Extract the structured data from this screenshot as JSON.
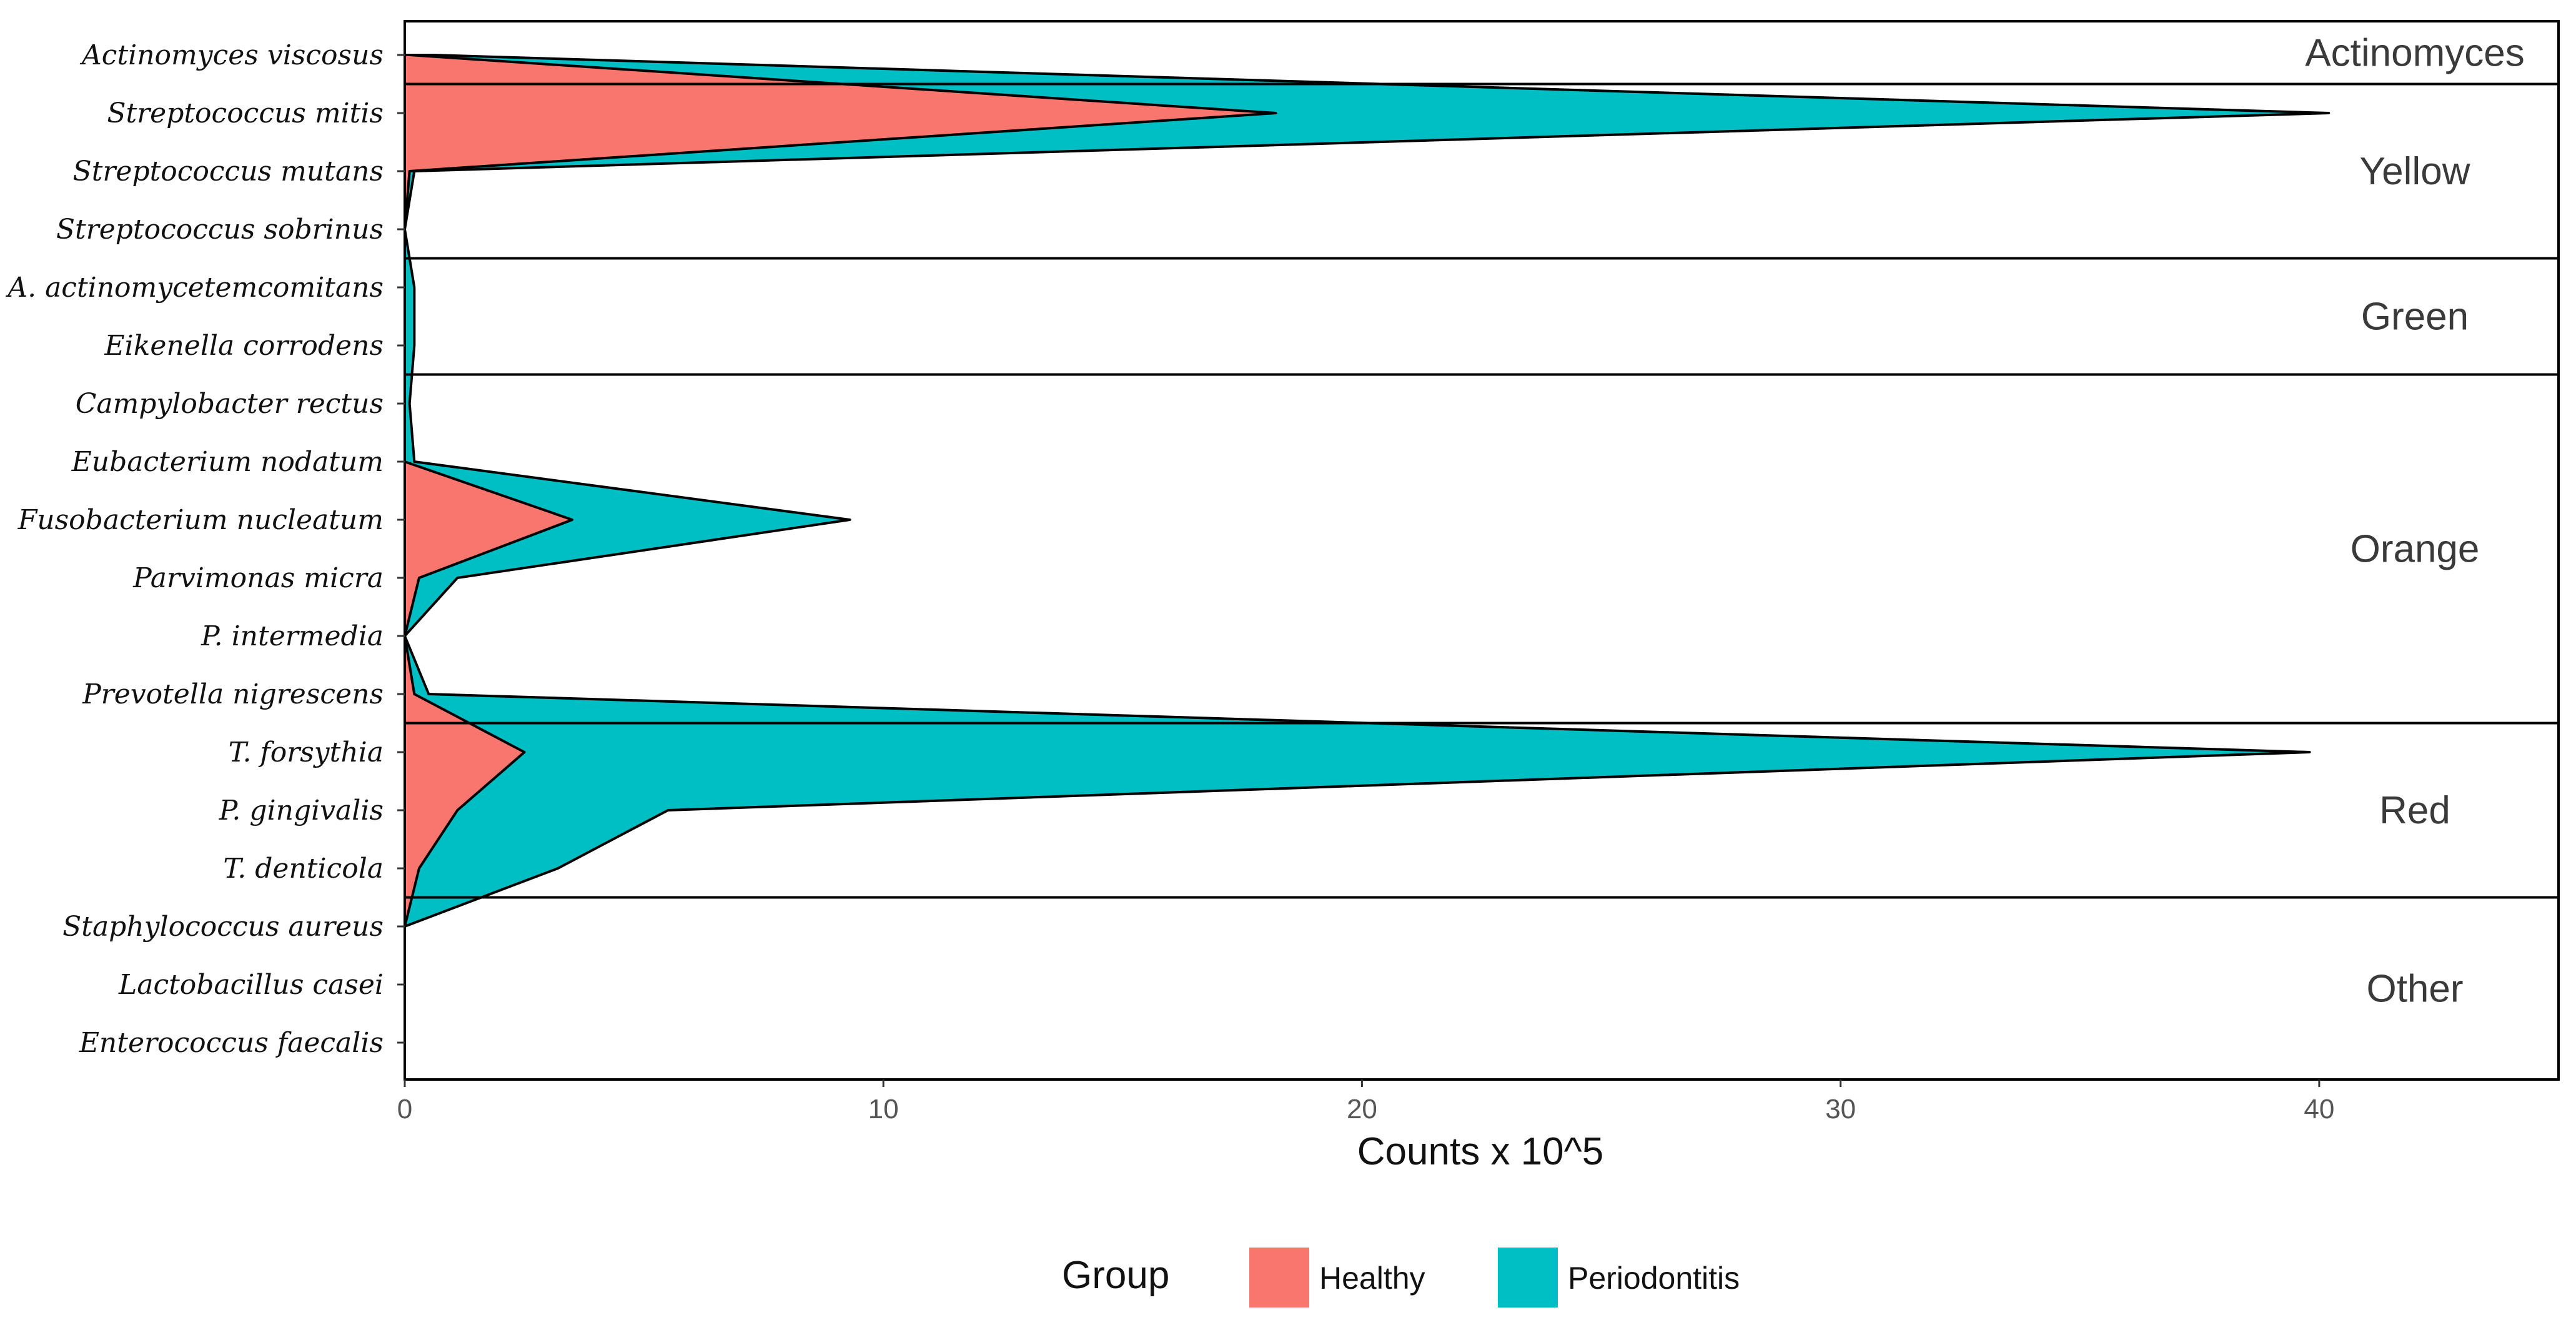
{
  "chart_data": {
    "type": "area",
    "orientation": "horizontal",
    "xlabel": "Counts x 10^5",
    "xlim": [
      0,
      45
    ],
    "x_ticks": [
      0,
      10,
      20,
      30,
      40
    ],
    "x_tick_labels": [
      "0",
      "10",
      "20",
      "30",
      "40"
    ],
    "categories": [
      "Actinomyces viscosus",
      "Streptococcus mitis",
      "Streptococcus mutans",
      "Streptococcus sobrinus",
      "A. actinomycetemcomitans",
      "Eikenella corrodens",
      "Campylobacter rectus",
      "Eubacterium nodatum",
      "Fusobacterium nucleatum",
      "Parvimonas micra",
      "P. intermedia",
      "Prevotella nigrescens",
      "T. forsythia",
      "P. gingivalis",
      "T. denticola",
      "Staphylococcus aureus",
      "Lactobacillus casei",
      "Enterococcus faecalis"
    ],
    "complexes": [
      {
        "name": "Actinomyces",
        "from": 0,
        "to": 0
      },
      {
        "name": "Yellow",
        "from": 1,
        "to": 3
      },
      {
        "name": "Green",
        "from": 4,
        "to": 5
      },
      {
        "name": "Orange",
        "from": 6,
        "to": 11
      },
      {
        "name": "Red",
        "from": 12,
        "to": 14
      },
      {
        "name": "Other",
        "from": 15,
        "to": 17
      }
    ],
    "series": [
      {
        "name": "Healthy",
        "color": "#F8766D",
        "values": [
          0.1,
          18.2,
          0.1,
          0.0,
          0.0,
          0.0,
          0.0,
          0.0,
          3.5,
          0.3,
          0.0,
          0.2,
          2.5,
          1.1,
          0.3,
          0.0,
          0.0,
          0.0
        ]
      },
      {
        "name": "Periodontitis",
        "color": "#00BFC4",
        "values": [
          0.5,
          22.0,
          0.1,
          0.0,
          0.2,
          0.2,
          0.1,
          0.2,
          5.8,
          0.8,
          0.0,
          0.3,
          37.3,
          4.4,
          2.9,
          0.0,
          0.0,
          0.0
        ]
      }
    ],
    "legend": {
      "title": "Group",
      "position": "bottom",
      "entries": [
        "Healthy",
        "Periodontitis"
      ]
    },
    "grid": false
  }
}
